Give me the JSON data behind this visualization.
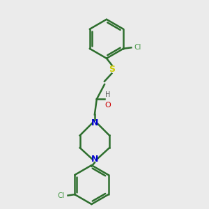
{
  "bg_color": "#ebebeb",
  "bond_color": "#2d6e2d",
  "S_color": "#cccc00",
  "N_color": "#0000cc",
  "O_color": "#cc0000",
  "Cl_color": "#4a9a4a",
  "line_width": 1.8,
  "figsize": [
    3.0,
    3.0
  ],
  "dpi": 100,
  "xlim": [
    0,
    10
  ],
  "ylim": [
    0,
    10
  ]
}
